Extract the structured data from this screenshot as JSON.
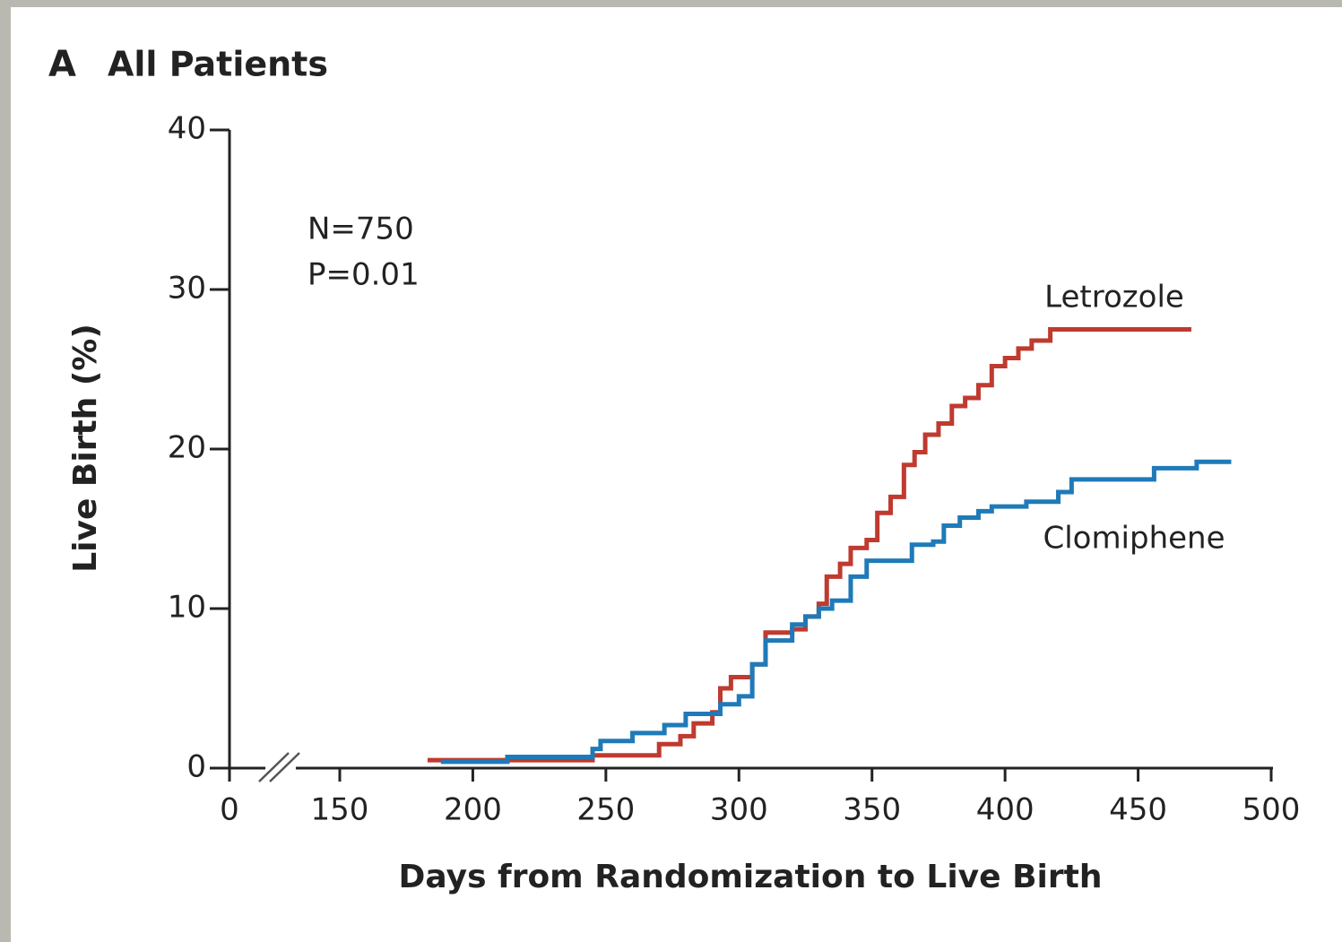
{
  "chart_data": {
    "type": "step",
    "panel": "A",
    "title": "All Patients",
    "xlabel": "Days from Randomization to Live Birth",
    "ylabel": "Live Birth (%)",
    "annotations": [
      "N=750",
      "P=0.01"
    ],
    "xlim": [
      0,
      500
    ],
    "x_break": [
      0,
      150
    ],
    "xticks": [
      0,
      150,
      200,
      250,
      300,
      350,
      400,
      450,
      500
    ],
    "ylim": [
      0,
      40
    ],
    "yticks": [
      0,
      10,
      20,
      30,
      40
    ],
    "series": [
      {
        "name": "Letrozole",
        "color": "#bf3a2f",
        "x": [
          183,
          245,
          270,
          278,
          283,
          290,
          293,
          297,
          305,
          310,
          320,
          325,
          330,
          333,
          338,
          342,
          348,
          352,
          357,
          362,
          366,
          370,
          375,
          380,
          385,
          390,
          395,
          400,
          405,
          410,
          417,
          470
        ],
        "values": [
          0.5,
          0.8,
          1.5,
          2,
          2.8,
          3.5,
          5,
          5.7,
          6.5,
          8.5,
          8.7,
          9.5,
          10.3,
          12,
          12.8,
          13.8,
          14.3,
          16,
          17,
          19,
          19.8,
          20.9,
          21.6,
          22.7,
          23.2,
          24,
          25.2,
          25.7,
          26.3,
          26.8,
          27.5,
          27.5
        ]
      },
      {
        "name": "Clomiphene",
        "color": "#1f7ab8",
        "x": [
          188,
          213,
          245,
          248,
          260,
          272,
          280,
          293,
          300,
          305,
          310,
          320,
          325,
          330,
          335,
          342,
          348,
          365,
          373,
          377,
          383,
          390,
          395,
          408,
          420,
          425,
          456,
          472,
          485
        ],
        "values": [
          0.4,
          0.7,
          1.2,
          1.7,
          2.2,
          2.7,
          3.4,
          4,
          4.5,
          6.5,
          8,
          9,
          9.5,
          10,
          10.5,
          12,
          13,
          14,
          14.2,
          15.2,
          15.7,
          16.1,
          16.4,
          16.7,
          17.3,
          18.1,
          18.8,
          19.2,
          19.2
        ]
      }
    ]
  }
}
